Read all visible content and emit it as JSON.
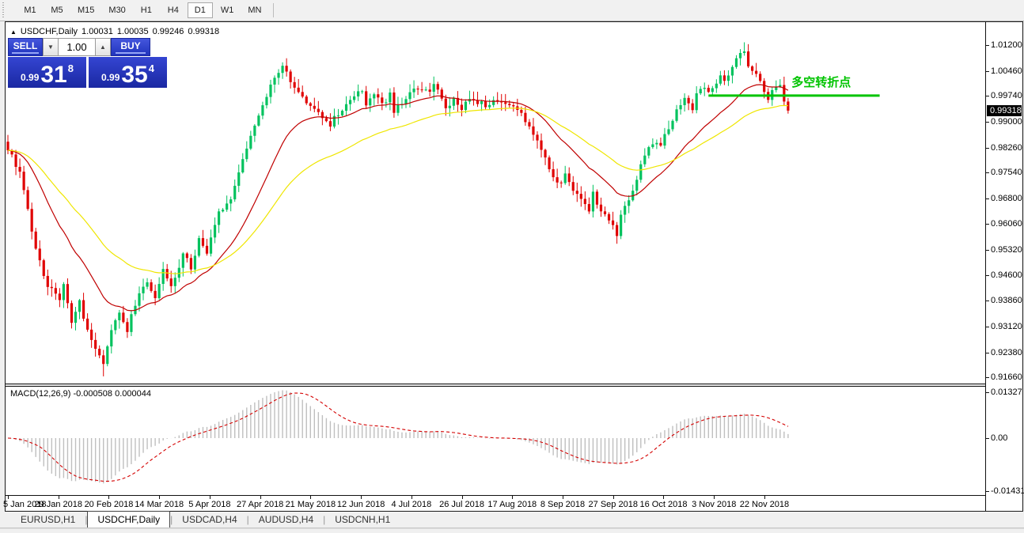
{
  "toolbar": {
    "timeframes": [
      "M1",
      "M5",
      "M15",
      "M30",
      "H1",
      "H4",
      "D1",
      "W1",
      "MN"
    ],
    "active": "D1"
  },
  "chart_header": {
    "collapse_icon": "▲",
    "symbol": "USDCHF,Daily",
    "open": "1.00031",
    "high": "1.00035",
    "low": "0.99246",
    "close": "0.99318"
  },
  "trade_panel": {
    "sell_label": "SELL",
    "buy_label": "BUY",
    "volume": "1.00",
    "spinner_down": "▼",
    "spinner_up": "▲",
    "sell_price": {
      "prefix": "0.99",
      "big": "31",
      "sup": "8"
    },
    "buy_price": {
      "prefix": "0.99",
      "big": "35",
      "sup": "4"
    }
  },
  "price_axis": {
    "tick_labels": [
      "1.01200",
      "1.00460",
      "0.99740",
      "0.99000",
      "0.98260",
      "0.97540",
      "0.96800",
      "0.96060",
      "0.95320",
      "0.94600",
      "0.93860",
      "0.93120",
      "0.92380",
      "0.91660"
    ],
    "current_label": "0.99318"
  },
  "macd_axis": {
    "top": "0.01327",
    "zero": "0.00",
    "bottom": "-0.01431"
  },
  "indicator_label": "MACD(12,26,9) -0.000508 0.000044",
  "annotation": {
    "text": "多空转折点"
  },
  "date_axis": {
    "labels": [
      "5 Jan 2018",
      "29 Jan 2018",
      "20 Feb 2018",
      "14 Mar 2018",
      "5 Apr 2018",
      "27 Apr 2018",
      "21 May 2018",
      "12 Jun 2018",
      "4 Jul 2018",
      "26 Jul 2018",
      "17 Aug 2018",
      "8 Sep 2018",
      "27 Sep 2018",
      "16 Oct 2018",
      "3 Nov 2018",
      "22 Nov 2018"
    ]
  },
  "bottom_tabs": {
    "items": [
      "EURUSD,H1",
      "USDCHF,Daily",
      "USDCAD,H4",
      "AUDUSD,H4",
      "USDCNH,H1"
    ],
    "active": "USDCHF,Daily"
  },
  "colors": {
    "bull": "#00C25E",
    "bear": "#E00000",
    "ma_fast": "#C00000",
    "ma_slow": "#EFE600",
    "macd_hist": "#BFBFBF",
    "macd_signal": "#D40000",
    "annotation_green": "#00C400",
    "price_marker_bg": "#000000"
  },
  "chart_data": {
    "type": "candlestick",
    "symbol": "USDCHF",
    "timeframe": "Daily",
    "title": "USDCHF,Daily",
    "ohlc_display": {
      "open": 1.00031,
      "high": 1.00035,
      "low": 0.99246,
      "close": 0.99318
    },
    "y_axis": {
      "min": 0.9166,
      "max": 1.0132,
      "ticks": [
        1.012,
        1.0046,
        0.9974,
        0.99,
        0.9826,
        0.9754,
        0.968,
        0.9606,
        0.9532,
        0.946,
        0.9386,
        0.9312,
        0.9238,
        0.9166
      ]
    },
    "x_axis": {
      "labels": [
        "5 Jan 2018",
        "29 Jan 2018",
        "20 Feb 2018",
        "14 Mar 2018",
        "5 Apr 2018",
        "27 Apr 2018",
        "21 May 2018",
        "12 Jun 2018",
        "4 Jul 2018",
        "26 Jul 2018",
        "17 Aug 2018",
        "8 Sep 2018",
        "27 Sep 2018",
        "16 Oct 2018",
        "3 Nov 2018",
        "22 Nov 2018"
      ],
      "candles_per_label": 13
    },
    "num_candles": 197,
    "close_path": [
      [
        0,
        0.982
      ],
      [
        3,
        0.9755
      ],
      [
        7,
        0.953
      ],
      [
        10,
        0.943
      ],
      [
        13,
        0.9385
      ],
      [
        14,
        0.944
      ],
      [
        16,
        0.9325
      ],
      [
        18,
        0.939
      ],
      [
        20,
        0.9295
      ],
      [
        24,
        0.921
      ],
      [
        26,
        0.931
      ],
      [
        28,
        0.9355
      ],
      [
        30,
        0.93
      ],
      [
        32,
        0.938
      ],
      [
        35,
        0.944
      ],
      [
        37,
        0.9395
      ],
      [
        39,
        0.947
      ],
      [
        41,
        0.942
      ],
      [
        44,
        0.952
      ],
      [
        46,
        0.948
      ],
      [
        48,
        0.956
      ],
      [
        50,
        0.953
      ],
      [
        53,
        0.964
      ],
      [
        56,
        0.968
      ],
      [
        58,
        0.975
      ],
      [
        60,
        0.982
      ],
      [
        62,
        0.989
      ],
      [
        65,
        0.998
      ],
      [
        67,
        1.003
      ],
      [
        69,
        1.0055
      ],
      [
        71,
        1.002
      ],
      [
        73,
        0.999
      ],
      [
        75,
        0.996
      ],
      [
        77,
        0.9935
      ],
      [
        79,
        0.991
      ],
      [
        81,
        0.989
      ],
      [
        83,
        0.9925
      ],
      [
        85,
        0.995
      ],
      [
        87,
        0.9975
      ],
      [
        89,
        0.9985
      ],
      [
        90,
        0.995
      ],
      [
        92,
        0.998
      ],
      [
        94,
        0.995
      ],
      [
        96,
        0.9975
      ],
      [
        97,
        0.993
      ],
      [
        99,
        0.995
      ],
      [
        101,
        0.9985
      ],
      [
        103,
        1.0
      ],
      [
        105,
        0.9985
      ],
      [
        107,
        1.0005
      ],
      [
        109,
        0.9975
      ],
      [
        110,
        0.994
      ],
      [
        112,
        0.9965
      ],
      [
        114,
        0.994
      ],
      [
        116,
        0.996
      ],
      [
        118,
        0.9955
      ],
      [
        120,
        0.9945
      ],
      [
        122,
        0.996
      ],
      [
        124,
        0.995
      ],
      [
        126,
        0.9955
      ],
      [
        128,
        0.994
      ],
      [
        130,
        0.99
      ],
      [
        132,
        0.987
      ],
      [
        134,
        0.982
      ],
      [
        136,
        0.976
      ],
      [
        138,
        0.972
      ],
      [
        140,
        0.9745
      ],
      [
        142,
        0.97
      ],
      [
        144,
        0.968
      ],
      [
        146,
        0.965
      ],
      [
        147,
        0.9695
      ],
      [
        148,
        0.966
      ],
      [
        150,
        0.963
      ],
      [
        152,
        0.9605
      ],
      [
        153,
        0.957
      ],
      [
        154,
        0.9635
      ],
      [
        156,
        0.968
      ],
      [
        158,
        0.973
      ],
      [
        159,
        0.977
      ],
      [
        160,
        0.98
      ],
      [
        162,
        0.984
      ],
      [
        164,
        0.983
      ],
      [
        165,
        0.987
      ],
      [
        167,
        0.99
      ],
      [
        168,
        0.9935
      ],
      [
        170,
        0.996
      ],
      [
        172,
        0.994
      ],
      [
        173,
        0.9975
      ],
      [
        174,
        1.0
      ],
      [
        176,
        0.998
      ],
      [
        178,
        1.001
      ],
      [
        179,
        1.004
      ],
      [
        180,
        1.002
      ],
      [
        182,
        1.006
      ],
      [
        184,
        1.009
      ],
      [
        185,
        1.011
      ],
      [
        186,
        1.006
      ],
      [
        188,
        1.003
      ],
      [
        190,
        0.999
      ],
      [
        191,
        0.996
      ],
      [
        192,
        0.9985
      ],
      [
        194,
        1.0
      ],
      [
        196,
        0.9932
      ]
    ],
    "key_extremes": {
      "low": {
        "index": 24,
        "price": 0.9169
      },
      "high": {
        "index": 185,
        "price": 1.0128
      }
    },
    "last_close": 0.99318,
    "moving_averages": [
      {
        "name": "fast",
        "type": "ema",
        "period": 20,
        "color": "#C00000"
      },
      {
        "name": "slow",
        "type": "ema",
        "period": 45,
        "color": "#EFE600"
      }
    ],
    "annotations": [
      {
        "type": "hline_segment",
        "text": "多空转折点",
        "price": 0.9975,
        "x_start_index": 176,
        "x_end_index": 219,
        "color": "#00C400"
      }
    ],
    "macd": {
      "params": [
        12,
        26,
        9
      ],
      "last_macd": -0.000508,
      "last_signal": 4.4e-05,
      "scale_max": 0.01327,
      "scale_min": -0.01431
    }
  }
}
